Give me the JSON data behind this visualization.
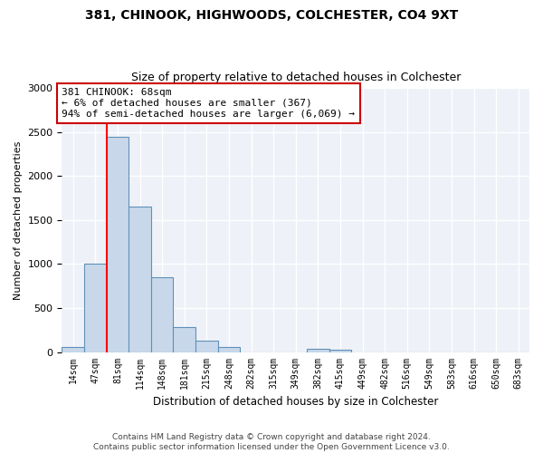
{
  "title_line1": "381, CHINOOK, HIGHWOODS, COLCHESTER, CO4 9XT",
  "title_line2": "Size of property relative to detached houses in Colchester",
  "xlabel": "Distribution of detached houses by size in Colchester",
  "ylabel": "Number of detached properties",
  "bin_labels": [
    "14sqm",
    "47sqm",
    "81sqm",
    "114sqm",
    "148sqm",
    "181sqm",
    "215sqm",
    "248sqm",
    "282sqm",
    "315sqm",
    "349sqm",
    "382sqm",
    "415sqm",
    "449sqm",
    "482sqm",
    "516sqm",
    "549sqm",
    "583sqm",
    "616sqm",
    "650sqm",
    "683sqm"
  ],
  "bar_values": [
    55,
    1000,
    2450,
    1650,
    850,
    280,
    130,
    55,
    0,
    0,
    0,
    40,
    25,
    0,
    0,
    0,
    0,
    0,
    0,
    0,
    0
  ],
  "bar_color": "#c8d8ea",
  "bar_edge_color": "#6090b8",
  "red_line_x": 1.5,
  "annotation_text": "381 CHINOOK: 68sqm\n← 6% of detached houses are smaller (367)\n94% of semi-detached houses are larger (6,069) →",
  "annotation_box_color": "#ffffff",
  "annotation_box_edge": "#cc0000",
  "ylim": [
    0,
    3000
  ],
  "yticks": [
    0,
    500,
    1000,
    1500,
    2000,
    2500,
    3000
  ],
  "footer_line1": "Contains HM Land Registry data © Crown copyright and database right 2024.",
  "footer_line2": "Contains public sector information licensed under the Open Government Licence v3.0.",
  "background_color": "#eef2f8"
}
